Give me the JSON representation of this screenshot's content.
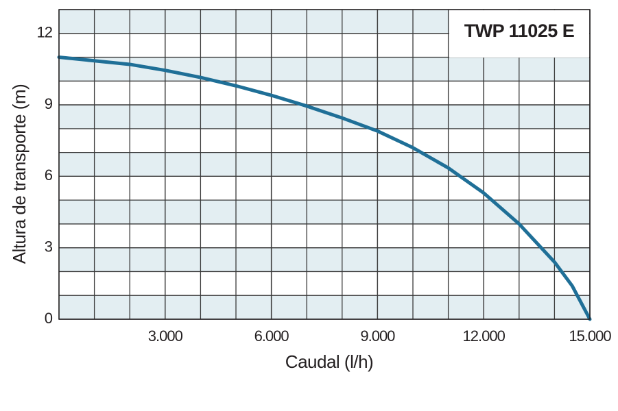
{
  "chart_data": {
    "type": "line",
    "title": "TWP 11025 E",
    "x_label": "Caudal (l/h)",
    "y_label": "Altura de transporte (m)",
    "x": [
      0,
      1000,
      2000,
      3000,
      4000,
      5000,
      6000,
      7000,
      8000,
      9000,
      10000,
      11000,
      12000,
      13000,
      14000,
      14500,
      15000
    ],
    "series": [
      {
        "name": "TWP 11025 E",
        "color": "#1f6f97",
        "values": [
          11.0,
          10.85,
          10.7,
          10.45,
          10.15,
          9.8,
          9.4,
          8.95,
          8.45,
          7.9,
          7.2,
          6.35,
          5.3,
          4.0,
          2.4,
          1.4,
          0
        ]
      }
    ],
    "xlim": [
      0,
      15000
    ],
    "ylim": [
      0,
      13
    ],
    "xticks": [
      {
        "value": 3000,
        "label": "3.000"
      },
      {
        "value": 6000,
        "label": "6.000"
      },
      {
        "value": 9000,
        "label": "9.000"
      },
      {
        "value": 12000,
        "label": "12.000"
      },
      {
        "value": 15000,
        "label": "15.000"
      }
    ],
    "yticks": [
      0,
      3,
      6,
      9,
      12
    ],
    "grid": true
  }
}
